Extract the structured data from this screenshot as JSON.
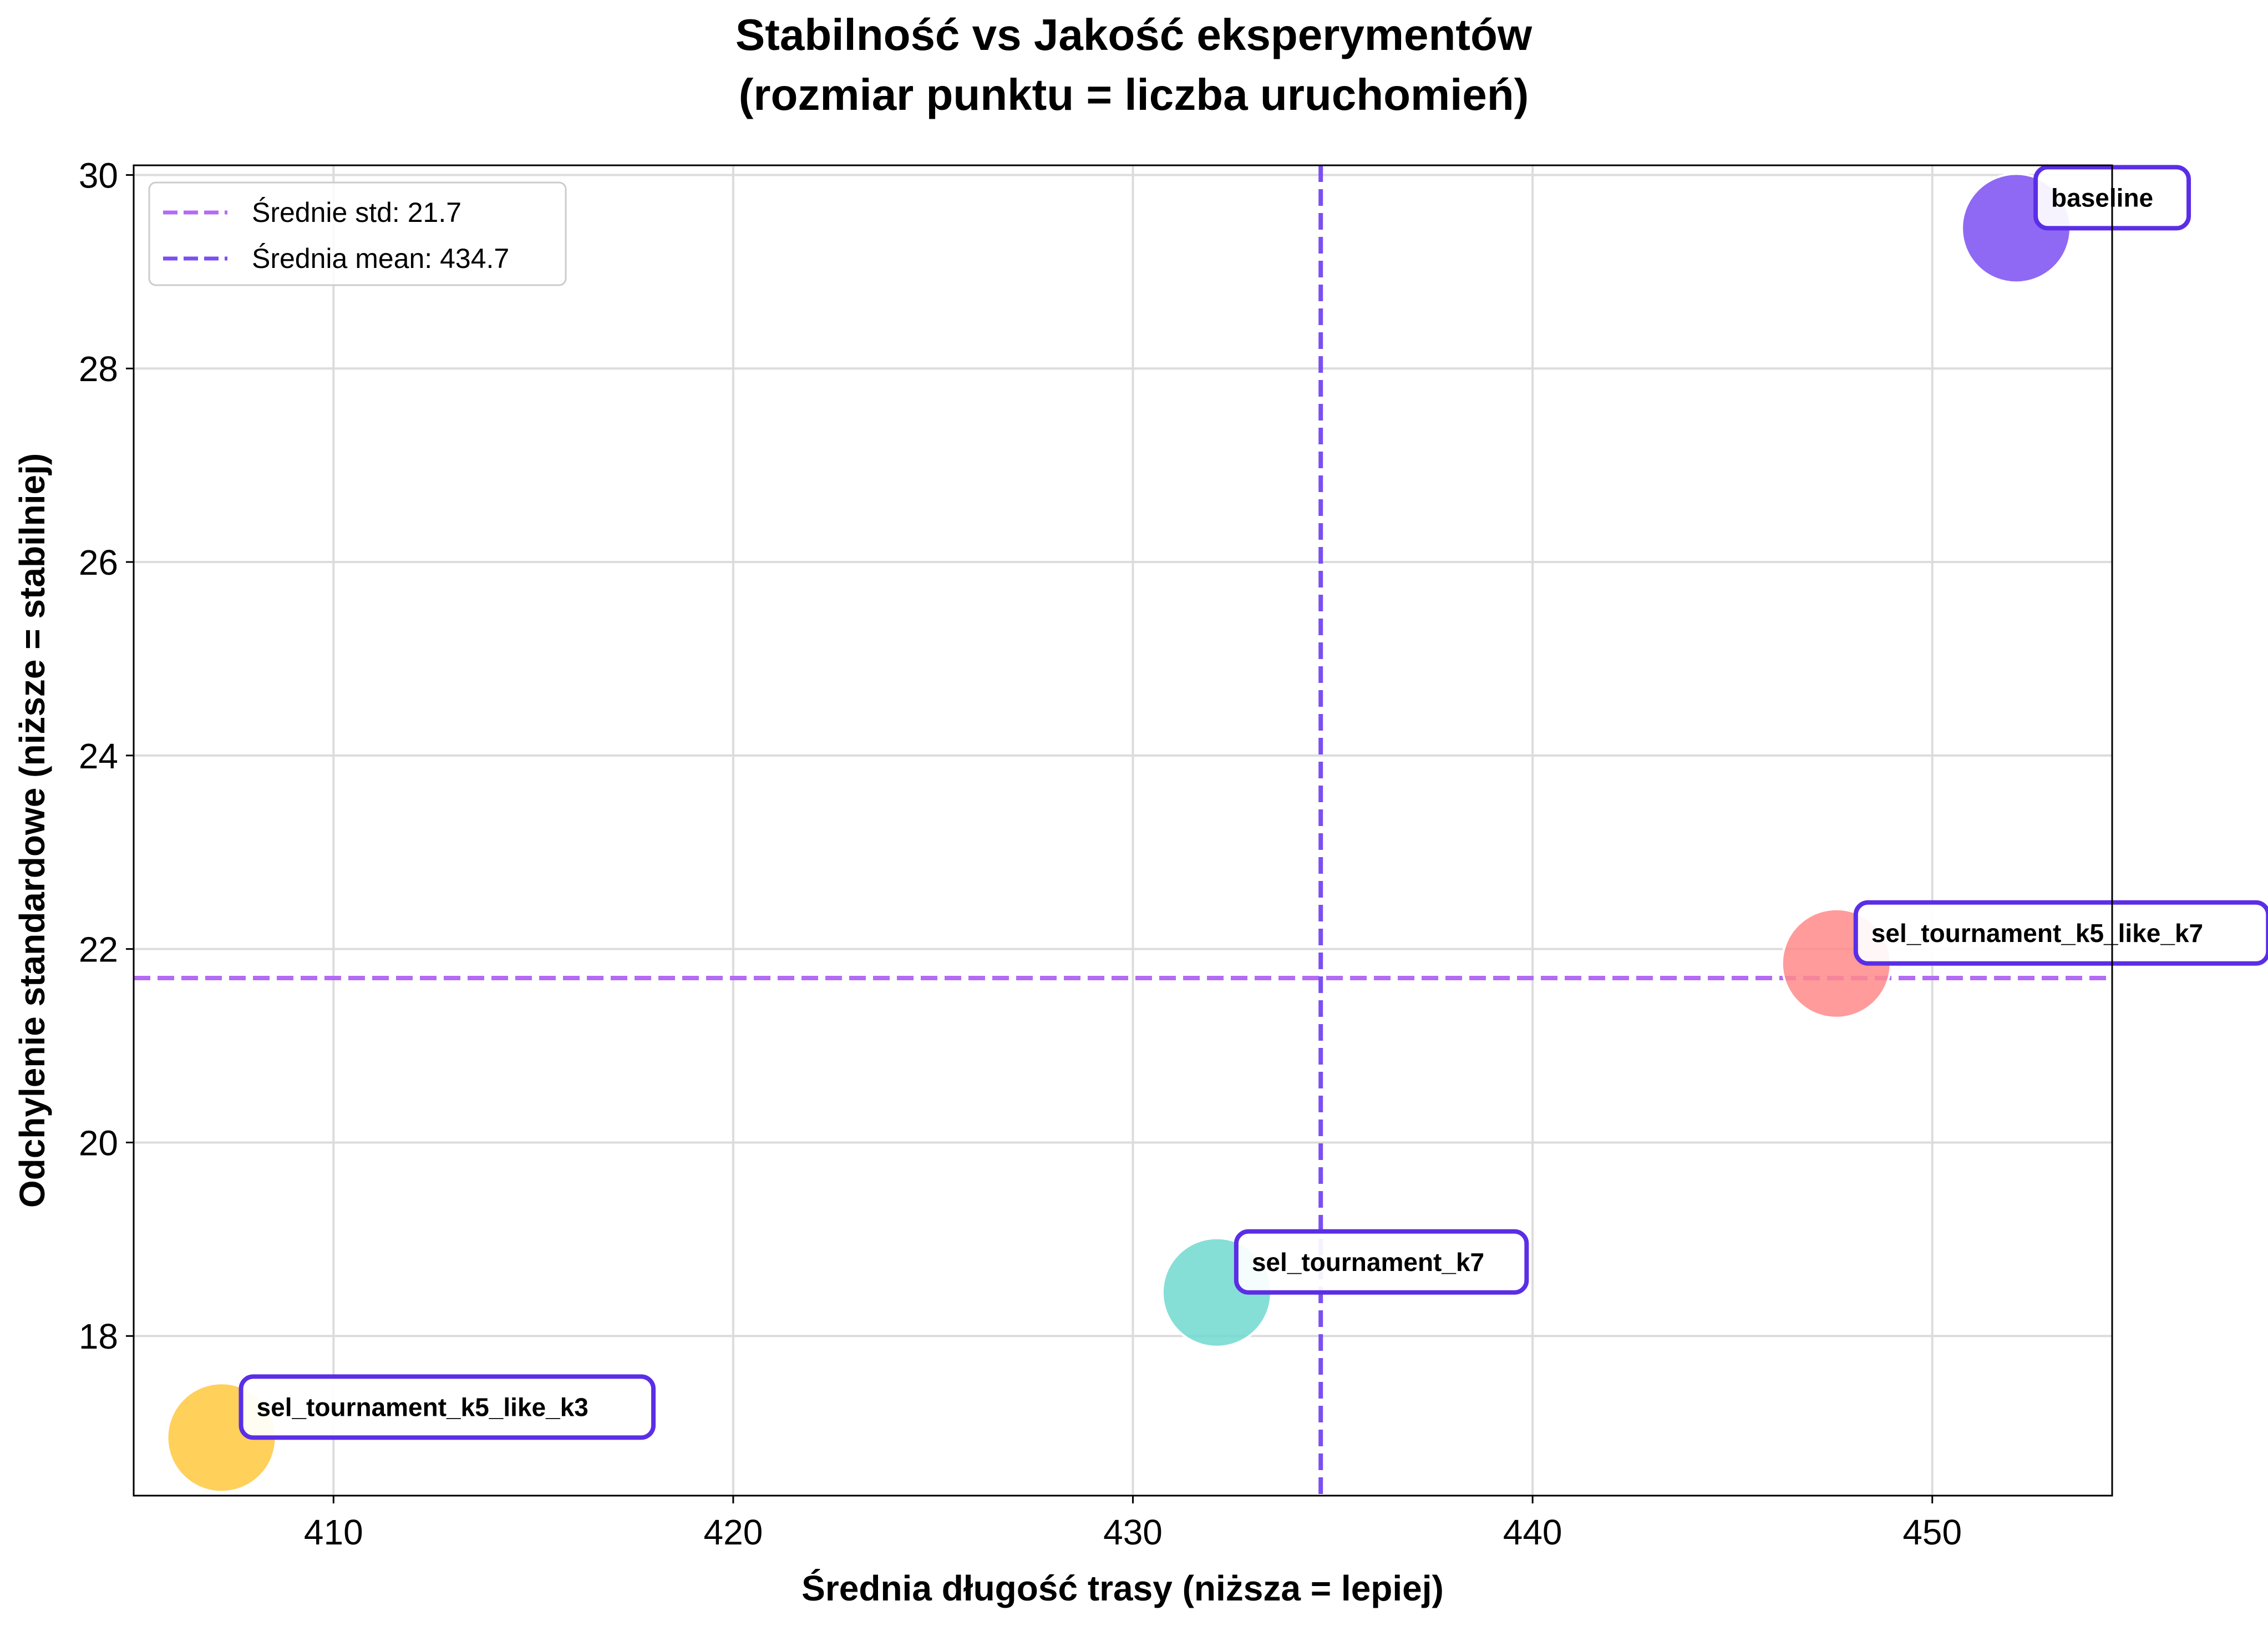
{
  "chart_data": {
    "type": "scatter",
    "title_lines": [
      "Stabilność vs Jakość eksperymentów",
      "(rozmiar punktu = liczba uruchomień)"
    ],
    "xlabel": "Średnia długość trasy (niższa = lepiej)",
    "ylabel": "Odchylenie standardowe (niższe = stabilniej)",
    "xlim": [
      405,
      454.5
    ],
    "ylim": [
      16.35,
      30.1
    ],
    "xticks": [
      410,
      420,
      430,
      440,
      450
    ],
    "yticks": [
      18,
      20,
      22,
      24,
      26,
      28,
      30
    ],
    "grid": true,
    "legend_position": "top-left",
    "points": [
      {
        "label": "baseline",
        "x": 452.1,
        "y": 29.45,
        "color": "#7b4ff2"
      },
      {
        "label": "sel_tournament_k5_like_k7",
        "x": 447.6,
        "y": 21.85,
        "color": "#ff8a8a"
      },
      {
        "label": "sel_tournament_k7",
        "x": 432.1,
        "y": 18.45,
        "color": "#71d9cf"
      },
      {
        "label": "sel_tournament_k5_like_k3",
        "x": 407.2,
        "y": 16.95,
        "color": "#ffc83d"
      }
    ],
    "reference_lines": [
      {
        "orientation": "horizontal",
        "value": 21.7,
        "label": "Średnie std: 21.7",
        "color": "#b36bf5"
      },
      {
        "orientation": "vertical",
        "value": 434.7,
        "label": "Średnia mean: 434.7",
        "color": "#7b4ff2"
      }
    ],
    "label_border_color": "#5b2ee6"
  }
}
